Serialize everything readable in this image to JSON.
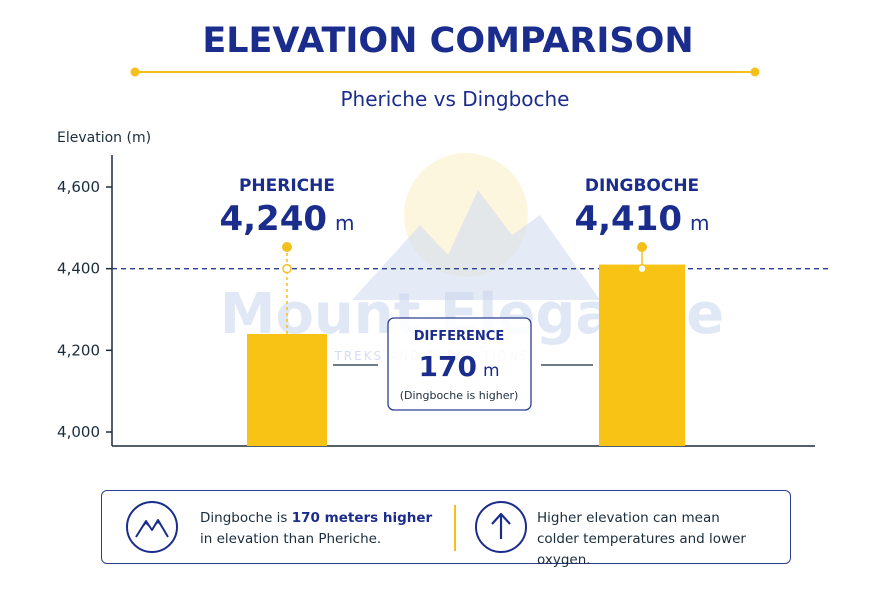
{
  "title": "ELEVATION COMPARISON",
  "subtitle": "Pheriche vs Dingboche",
  "watermark": {
    "brand": "Mount Elegance",
    "tagline": "TREKS AND EXPEDITIONS"
  },
  "chart_data": {
    "type": "bar",
    "ylabel": "Elevation (m)",
    "ylim": [
      4000,
      4650
    ],
    "yticks": [
      4000,
      4200,
      4400,
      4600
    ],
    "ytick_labels": [
      "4,000",
      "4,200",
      "4,400",
      "4,600"
    ],
    "reference_line": 4400,
    "categories": [
      "PHERICHE",
      "DINGBOCHE"
    ],
    "values": [
      4240,
      4410
    ],
    "value_labels": [
      "4,240",
      "4,410"
    ],
    "unit": "m",
    "bar_color": "#F9C316",
    "grid": false
  },
  "difference": {
    "heading": "DIFFERENCE",
    "value": "170",
    "unit": "m",
    "note": "(Dingboche is higher)"
  },
  "info": {
    "left_pre": "Dingboche is ",
    "left_bold": "170 meters higher",
    "left_post": "in elevation than Pheriche.",
    "right_line1": "Higher elevation can mean",
    "right_line2": "colder temperatures and lower oxygen.",
    "left_icon": "mountain-icon",
    "right_icon": "arrow-up-icon"
  },
  "colors": {
    "navy": "#1B2D8C",
    "accent": "#F9C316"
  }
}
